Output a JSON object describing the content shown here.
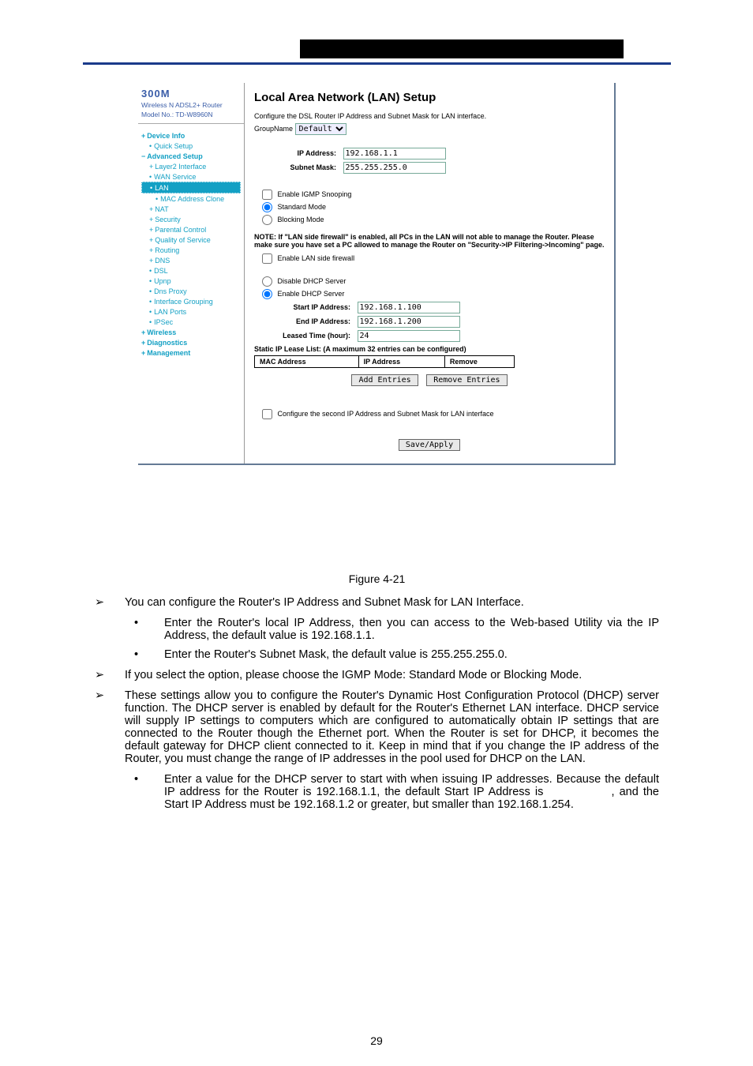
{
  "sidebar": {
    "brand": "300M",
    "subline": "Wireless N ADSL2+ Router",
    "model": "Model No.: TD-W8960N",
    "items": [
      {
        "label": "Device Info",
        "level": 1,
        "marker": "expand"
      },
      {
        "label": "Quick Setup",
        "level": 2,
        "marker": "bullet"
      },
      {
        "label": "Advanced Setup",
        "level": 1,
        "marker": "collapse"
      },
      {
        "label": "Layer2 Interface",
        "level": 2,
        "marker": "expand"
      },
      {
        "label": "WAN Service",
        "level": 2,
        "marker": "bullet"
      },
      {
        "label": "LAN",
        "level": 2,
        "marker": "bullet",
        "active": true
      },
      {
        "label": "MAC Address Clone",
        "level": 3,
        "marker": "bullet"
      },
      {
        "label": "NAT",
        "level": 2,
        "marker": "expand"
      },
      {
        "label": "Security",
        "level": 2,
        "marker": "expand"
      },
      {
        "label": "Parental Control",
        "level": 2,
        "marker": "expand"
      },
      {
        "label": "Quality of Service",
        "level": 2,
        "marker": "expand"
      },
      {
        "label": "Routing",
        "level": 2,
        "marker": "expand"
      },
      {
        "label": "DNS",
        "level": 2,
        "marker": "expand"
      },
      {
        "label": "DSL",
        "level": 2,
        "marker": "bullet"
      },
      {
        "label": "Upnp",
        "level": 2,
        "marker": "bullet"
      },
      {
        "label": "Dns Proxy",
        "level": 2,
        "marker": "bullet"
      },
      {
        "label": "Interface Grouping",
        "level": 2,
        "marker": "bullet"
      },
      {
        "label": "LAN Ports",
        "level": 2,
        "marker": "bullet"
      },
      {
        "label": "IPSec",
        "level": 2,
        "marker": "bullet"
      },
      {
        "label": "Wireless",
        "level": 1,
        "marker": "expand"
      },
      {
        "label": "Diagnostics",
        "level": 1,
        "marker": "expand"
      },
      {
        "label": "Management",
        "level": 1,
        "marker": "expand"
      }
    ]
  },
  "panel": {
    "title": "Local Area Network (LAN) Setup",
    "desc": "Configure the DSL Router IP Address and Subnet Mask for LAN interface.",
    "group_label": "GroupName",
    "group_value": "Default",
    "ip_label": "IP Address:",
    "ip_value": "192.168.1.1",
    "subnet_label": "Subnet Mask:",
    "subnet_value": "255.255.255.0",
    "igmp_label": "Enable IGMP Snooping",
    "std_mode": "Standard Mode",
    "blk_mode": "Blocking Mode",
    "note": "NOTE: If \"LAN side firewall\" is enabled, all PCs in the LAN will not able to manage the Router. Please make sure you have set a PC allowed to manage the Router on \"Security->IP Filtering->Incoming\" page.",
    "lan_fw": "Enable LAN side firewall",
    "dhcp_disable": "Disable DHCP Server",
    "dhcp_enable": "Enable DHCP Server",
    "start_ip_label": "Start IP Address:",
    "start_ip": "192.168.1.100",
    "end_ip_label": "End IP Address:",
    "end_ip": "192.168.1.200",
    "lease_label": "Leased Time (hour):",
    "lease_value": "24",
    "lease_list_label": "Static IP Lease List: (A maximum 32 entries can be configured)",
    "th_mac": "MAC Address",
    "th_ip": "IP Address",
    "th_remove": "Remove",
    "btn_add": "Add Entries",
    "btn_remove": "Remove Entries",
    "second_ip": "Configure the second IP Address and Subnet Mask for LAN interface",
    "btn_save": "Save/Apply"
  },
  "doc": {
    "figure": "Figure 4-21",
    "l1_ip": "You can configure the Router's IP Address and Subnet Mask for LAN Interface.",
    "l2_ipaddr": "Enter the Router's local IP Address, then you can access to the Web-based Utility via the IP Address, the default value is 192.168.1.1.",
    "l2_subnet": "Enter the Router's Subnet Mask, the default value is 255.255.255.0.",
    "l1_igmp": "If you select the option, please choose the IGMP Mode: Standard Mode or Blocking Mode.",
    "l1_dhcp": "These settings allow you to configure the Router's Dynamic Host Configuration Protocol (DHCP) server function. The DHCP server is enabled by default for the Router's Ethernet LAN interface. DHCP service will supply IP settings to computers which are configured to automatically obtain IP settings that are connected to the Router though the Ethernet port. When the Router is set for DHCP, it becomes the default gateway for DHCP client connected to it. Keep in mind that if you change the IP address of the Router, you must change the range of IP addresses in the pool used for DHCP on the LAN.",
    "l2_startip_a": "Enter a value for the DHCP server to start with when issuing IP addresses. Because the default IP address for the Router is 192.168.1.1, the default Start IP Address is ",
    "l2_startip_b": ", and the Start IP Address must be 192.168.1.2 or greater, but smaller than 192.168.1.254.",
    "page": "29"
  }
}
